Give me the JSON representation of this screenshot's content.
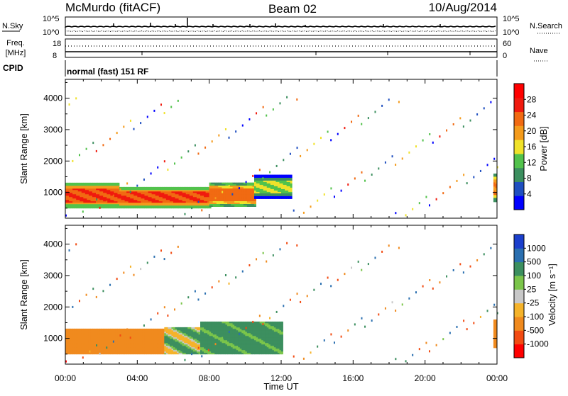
{
  "header": {
    "station": "McMurdo (fitACF)",
    "beam": "Beam 02",
    "date": "10/Aug/2014"
  },
  "noise_panel": {
    "left_label": "N.Sky",
    "right_label": "N.Search",
    "left_ticks": [
      "10^5",
      "10^0"
    ],
    "right_ticks": [
      "10^5",
      "10^0"
    ]
  },
  "freq_panel": {
    "left_label_top": "Freq.",
    "left_label_bottom": "[MHz]",
    "left_ticks": [
      "18",
      "8"
    ],
    "right_label": "Nave",
    "right_ticks": [
      "60",
      "0"
    ]
  },
  "cpid": {
    "label": "CPID",
    "value": "normal (fast) 151 RF"
  },
  "colors": {
    "power": [
      "#0000ff",
      "#1f4fc0",
      "#3c8f5f",
      "#52c24c",
      "#f0e22a",
      "#f49b1c",
      "#f16a12",
      "#f01a0e",
      "#ff0000"
    ],
    "velocity": [
      "#ff0000",
      "#f24b12",
      "#f08a1e",
      "#f5b32a",
      "#c8c8c8",
      "#7bc54a",
      "#3c8f5f",
      "#2a6fb0",
      "#1b3fcc"
    ]
  },
  "chart_data": [
    {
      "type": "heatmap",
      "title": "",
      "xlabel": "Time UT",
      "ylabel": "Slant Range [km]",
      "xlim": [
        0,
        24
      ],
      "ylim": [
        180,
        4600
      ],
      "x_ticks": [
        "00:00",
        "04:00",
        "08:00",
        "12:00",
        "16:00",
        "20:00",
        "00:00"
      ],
      "y_ticks": [
        1000,
        2000,
        3000,
        4000
      ],
      "colorbar": {
        "label": "Power [dB]",
        "range": [
          0,
          32
        ],
        "ticks": [
          4,
          8,
          12,
          16,
          20,
          24,
          28
        ]
      },
      "regions": [
        {
          "time": [
            0,
            3
          ],
          "range": [
            500,
            1300
          ],
          "level": 28
        },
        {
          "time": [
            3,
            8
          ],
          "range": [
            500,
            1150
          ],
          "level": 28
        },
        {
          "time": [
            8,
            10.5
          ],
          "range": [
            550,
            1300
          ],
          "level": 26
        },
        {
          "time": [
            10.5,
            12.5
          ],
          "range": [
            800,
            1550
          ],
          "level": 16
        },
        {
          "time": [
            23.8,
            24
          ],
          "range": [
            700,
            1600
          ],
          "level": 24
        }
      ]
    },
    {
      "type": "heatmap",
      "title": "",
      "xlabel": "Time UT",
      "ylabel": "Slant Range [km]",
      "xlim": [
        0,
        24
      ],
      "ylim": [
        180,
        4600
      ],
      "x_ticks": [
        "00:00",
        "04:00",
        "08:00",
        "12:00",
        "16:00",
        "20:00",
        "00:00"
      ],
      "y_ticks": [
        1000,
        2000,
        3000,
        4000
      ],
      "colorbar": {
        "label": "Velocity [m s⁻¹]",
        "ticks": [
          "1000",
          "500",
          "100",
          "25",
          "-25",
          "-100",
          "-500",
          "-1000"
        ]
      },
      "regions": [
        {
          "time": [
            0,
            5.5
          ],
          "range": [
            500,
            1300
          ],
          "velocity": -300
        },
        {
          "time": [
            5.5,
            7.5
          ],
          "range": [
            500,
            1350
          ],
          "velocity": 50
        },
        {
          "time": [
            7.5,
            12
          ],
          "range": [
            500,
            1500
          ],
          "velocity": 200
        },
        {
          "time": [
            23.8,
            24
          ],
          "range": [
            700,
            1600
          ],
          "velocity": -300
        }
      ]
    }
  ]
}
